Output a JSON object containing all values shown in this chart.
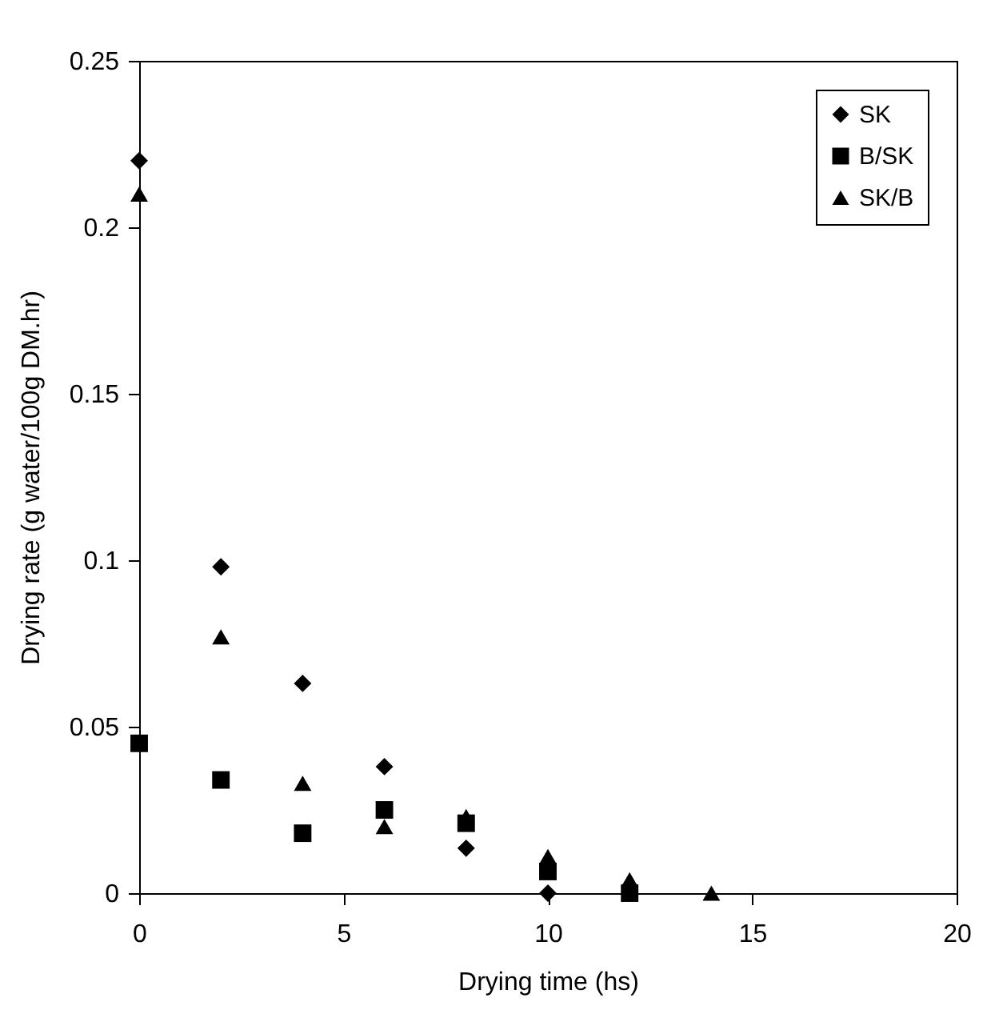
{
  "chart_data": {
    "type": "scatter",
    "xlabel": "Drying time (hs)",
    "ylabel": "Drying rate (g water/100g DM.hr)",
    "xlim": [
      0,
      20
    ],
    "xticks": [
      0,
      5,
      10,
      15,
      20
    ],
    "ylim": [
      0,
      0.25
    ],
    "yticks": [
      0,
      0.05,
      0.1,
      0.15,
      0.2,
      0.25
    ],
    "grid": false,
    "legend": "top right",
    "series": [
      {
        "name": "SK",
        "color": "#000000",
        "marker": "diamond",
        "x": [
          0,
          2,
          4,
          6,
          8,
          10
        ],
        "values": [
          0.22,
          0.098,
          0.063,
          0.038,
          0.0135,
          0
        ]
      },
      {
        "name": "B/SK",
        "color": "#000000",
        "marker": "square",
        "x": [
          0,
          2,
          4,
          6,
          8,
          10,
          12
        ],
        "values": [
          0.045,
          0.034,
          0.018,
          0.025,
          0.021,
          0.0065,
          0
        ]
      },
      {
        "name": "SK/B",
        "color": "#000000",
        "marker": "triangle",
        "x": [
          0,
          2,
          4,
          6,
          8,
          10,
          12,
          14
        ],
        "values": [
          0.21,
          0.077,
          0.033,
          0.02,
          0.023,
          0.011,
          0.004,
          0
        ]
      }
    ]
  }
}
